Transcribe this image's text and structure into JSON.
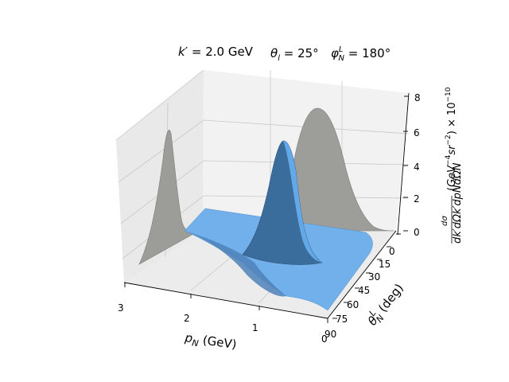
{
  "chart_data": {
    "type": "surface3d",
    "title_parts": {
      "kprime": "k′ = 2.0 GeV",
      "theta_l": "θl = 25°",
      "phi": "φNL = 180°"
    },
    "xlabel": "pN (GeV)",
    "ylabel": "θNL (deg)",
    "zlabel": "dσ / dk′dΩk′dpNdΩN (GeV⁻⁴sr⁻²) ×10⁻¹⁰",
    "x_ticks": [
      "3",
      "2",
      "1",
      "0"
    ],
    "y_ticks": [
      "0",
      "15",
      "30",
      "45",
      "60",
      "75",
      "90"
    ],
    "z_ticks": [
      "0",
      "2",
      "4",
      "6",
      "8"
    ],
    "xlim": [
      0,
      3
    ],
    "ylim": [
      0,
      90
    ],
    "zlim": [
      0,
      8
    ],
    "series": [
      {
        "kind": "surface",
        "peak": {
          "pN": 0.9,
          "theta": 18,
          "value": 6.0
        }
      },
      {
        "kind": "projection-theta",
        "peak": {
          "theta": 15,
          "value": 7.5
        }
      },
      {
        "kind": "projection-pN",
        "peak": {
          "pN": 1.3,
          "value": 6.8
        }
      }
    ],
    "grid": true,
    "colors": {
      "surface": "#6aaee8",
      "surface_dark": "#2e5f8a",
      "projection": "#9a9a96",
      "pane": "#f2f2f2",
      "pane_side": "#e6e6e6"
    }
  }
}
